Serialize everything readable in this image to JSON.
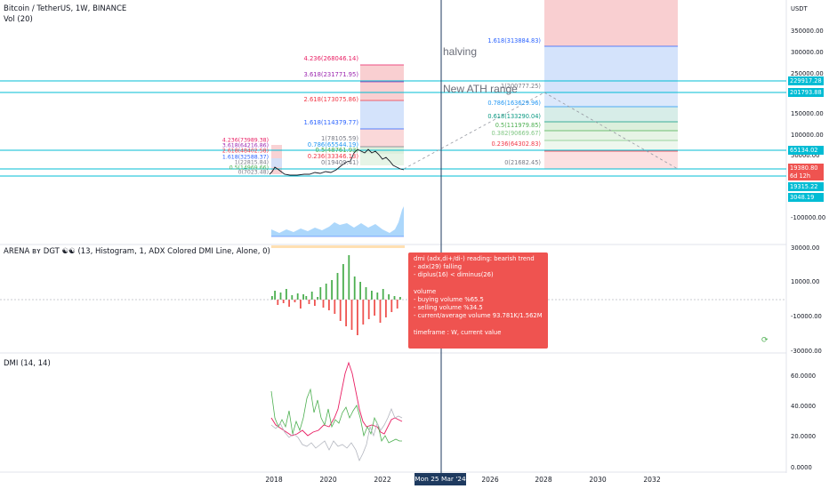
{
  "header": {
    "symbol_line": "Bitcoin / TetherUS, 1W, BINANCE",
    "vol_label": "Vol (20)",
    "arena_label": "ARENA ʙʏ DGT ☯☯ (13, Histogram, 1, ADX Colored DMI Line, Alone, 0)",
    "dmi_label": "DMI (14, 14)"
  },
  "annotations": {
    "halving": "halving",
    "new_ath": "New ATH range"
  },
  "colors": {
    "cyan_lines": "#00bcd4",
    "crosshair": "#1e3a5f",
    "tooltip_bg": "#ef5350",
    "fib_red_zone": "#f8c7c9",
    "fib_blue_zone": "#cfe0fb",
    "dmi_adx": "#e91e63",
    "dmi_plus": "#4caf50",
    "dmi_minus": "#b2b5be"
  },
  "tooltip": {
    "lines": [
      "dmi (adx,di+/di-) reading: bearish trend",
      "- adx(29) falling",
      "- diplus(16) < diminus(26)",
      "",
      "volume",
      " - buying volume %65.5",
      " - selling volume %34.5",
      " - current/average volume 93.781K/1.562M",
      "",
      "timeframe : W, current value"
    ]
  },
  "xaxis": {
    "labels": [
      "2018",
      "2020",
      "2022",
      "2026",
      "2028",
      "2030",
      "2032"
    ],
    "crosshair_label": "Mon 25 Mar '24"
  },
  "yaxis": {
    "currency": "USDT",
    "price_labels": [
      "350000.00",
      "300000.00",
      "250000.00",
      "150000.00",
      "100000.00",
      "50000.00",
      "-100000.00"
    ],
    "badges": [
      {
        "text": "229917.28",
        "color": "#00bcd4"
      },
      {
        "text": "201793.88",
        "color": "#00bcd4"
      },
      {
        "text": "65134.02",
        "color": "#00bcd4"
      },
      {
        "text": "19380.80",
        "color": "#ef5350"
      },
      {
        "text": "6d 12h",
        "color": "#ef5350"
      },
      {
        "text": "19315.22",
        "color": "#00bcd4"
      },
      {
        "text": "3048.19",
        "color": "#00bcd4"
      }
    ],
    "arena_labels": [
      "30000.00",
      "10000.00",
      "-10000.00",
      "-30000.00"
    ],
    "dmi_labels": [
      "60.0000",
      "40.0000",
      "20.0000",
      "0.0000"
    ]
  },
  "fib_projection": [
    {
      "label": "1.618(313884.83)",
      "color": "#2962ff"
    },
    {
      "label": "1(200777.25)",
      "color": "#787b86"
    },
    {
      "label": "0.786(163629.96)",
      "color": "#2196f3"
    },
    {
      "label": "0.618(133290.04)",
      "color": "#089981"
    },
    {
      "label": "0.5(111979.85)",
      "color": "#4caf50"
    },
    {
      "label": "0.382(90669.67)",
      "color": "#81c784"
    },
    {
      "label": "0.236(64302.83)",
      "color": "#f23645"
    },
    {
      "label": "0(21682.45)",
      "color": "#787b86"
    }
  ],
  "fib_mid": [
    {
      "label": "4.236(268046.14)",
      "color": "#e91e63"
    },
    {
      "label": "3.618(231771.95)",
      "color": "#9c27b0"
    },
    {
      "label": "2.618(173075.86)",
      "color": "#f23645"
    },
    {
      "label": "1.618(114379.77)",
      "color": "#2962ff"
    },
    {
      "label": "1(78105.59)",
      "color": "#787b86"
    },
    {
      "label": "0.786(65544.19)",
      "color": "#2196f3"
    },
    {
      "label": "0.5(48761.93)",
      "color": "#4caf50"
    },
    {
      "label": "0.236(33346.13)",
      "color": "#f23645"
    },
    {
      "label": "0(19409.41)",
      "color": "#787b86"
    }
  ],
  "fib_small": [
    {
      "label": "4.236(73989.38)",
      "color": "#e91e63"
    },
    {
      "label": "3.618(64216.86)",
      "color": "#9c27b0"
    },
    {
      "label": "2.618(48402.58)",
      "color": "#f23645"
    },
    {
      "label": "1.618(32588.37)",
      "color": "#2962ff"
    },
    {
      "label": "1(22815.84)",
      "color": "#787b86"
    },
    {
      "label": "0.5(14969.66)",
      "color": "#4caf50"
    },
    {
      "label": "0(7023.48)",
      "color": "#787b86"
    }
  ]
}
